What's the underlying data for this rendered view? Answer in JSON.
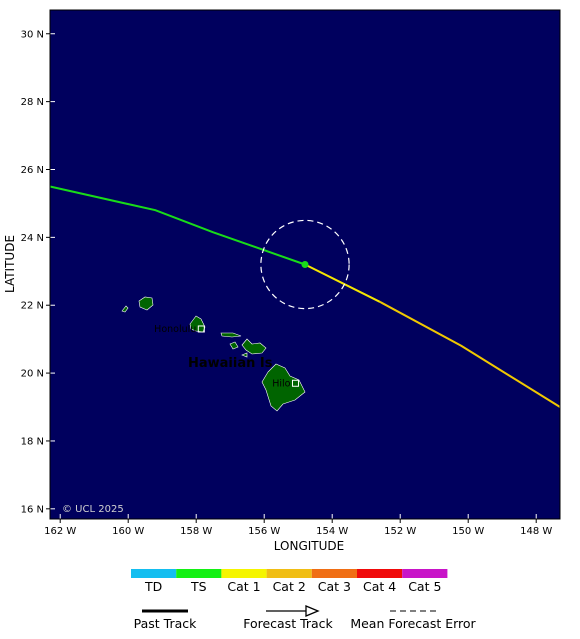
{
  "map": {
    "extent": {
      "lon_min": -162.3,
      "lon_max": -147.3,
      "lat_min": 15.7,
      "lat_max": 30.7
    },
    "background_color": "#00005e",
    "land_color": "#006400",
    "xlabel": "LONGITUDE",
    "ylabel": "LATITUDE",
    "copyright": "© UCL 2025",
    "region_label": "Hawaiian Is",
    "region_label_color": "#19c819",
    "lon_ticks": [
      {
        "value": -162,
        "label": "162 W"
      },
      {
        "value": -160,
        "label": "160 W"
      },
      {
        "value": -158,
        "label": "158 W"
      },
      {
        "value": -156,
        "label": "156 W"
      },
      {
        "value": -154,
        "label": "154 W"
      },
      {
        "value": -152,
        "label": "152 W"
      },
      {
        "value": -150,
        "label": "150 W"
      },
      {
        "value": -148,
        "label": "148 W"
      }
    ],
    "lat_ticks": [
      {
        "value": 16,
        "label": "16 N"
      },
      {
        "value": 18,
        "label": "18 N"
      },
      {
        "value": 20,
        "label": "20 N"
      },
      {
        "value": 22,
        "label": "22 N"
      },
      {
        "value": 24,
        "label": "24 N"
      },
      {
        "value": 26,
        "label": "26 N"
      },
      {
        "value": 28,
        "label": "28 N"
      },
      {
        "value": 30,
        "label": "30 N"
      }
    ],
    "cities": [
      {
        "name": "Honolulu",
        "lon": -157.85,
        "lat": 21.3
      },
      {
        "name": "Hilo",
        "lon": -155.08,
        "lat": 19.7
      }
    ],
    "past_track": {
      "color": "#19dc19",
      "points": [
        [
          -162.3,
          25.5
        ],
        [
          -159.2,
          24.8
        ],
        [
          -157.5,
          24.15
        ],
        [
          -154.8,
          23.2
        ]
      ]
    },
    "forecast_track": [
      {
        "color": "#f5e600",
        "points": [
          [
            -154.8,
            23.2
          ],
          [
            -152.6,
            22.1
          ]
        ]
      },
      {
        "color": "#f0c800",
        "points": [
          [
            -152.6,
            22.1
          ],
          [
            -150.2,
            20.8
          ],
          [
            -147.3,
            19.0
          ]
        ]
      }
    ],
    "current_position": {
      "lon": -154.8,
      "lat": 23.2,
      "color": "#19dc19"
    },
    "error_circle": {
      "lon": -154.8,
      "lat": 23.2,
      "radius_deg": 1.3
    }
  },
  "legend": {
    "categories": [
      {
        "label": "TD",
        "color": "#14bef0"
      },
      {
        "label": "TS",
        "color": "#14f014"
      },
      {
        "label": "Cat 1",
        "color": "#f5f500"
      },
      {
        "label": "Cat 2",
        "color": "#f0be14"
      },
      {
        "label": "Cat 3",
        "color": "#f06e14"
      },
      {
        "label": "Cat 4",
        "color": "#f00a0a"
      },
      {
        "label": "Cat 5",
        "color": "#c814c8"
      }
    ],
    "past_track_label": "Past Track",
    "forecast_track_label": "Forecast Track",
    "error_label": "Mean Forecast Error"
  }
}
